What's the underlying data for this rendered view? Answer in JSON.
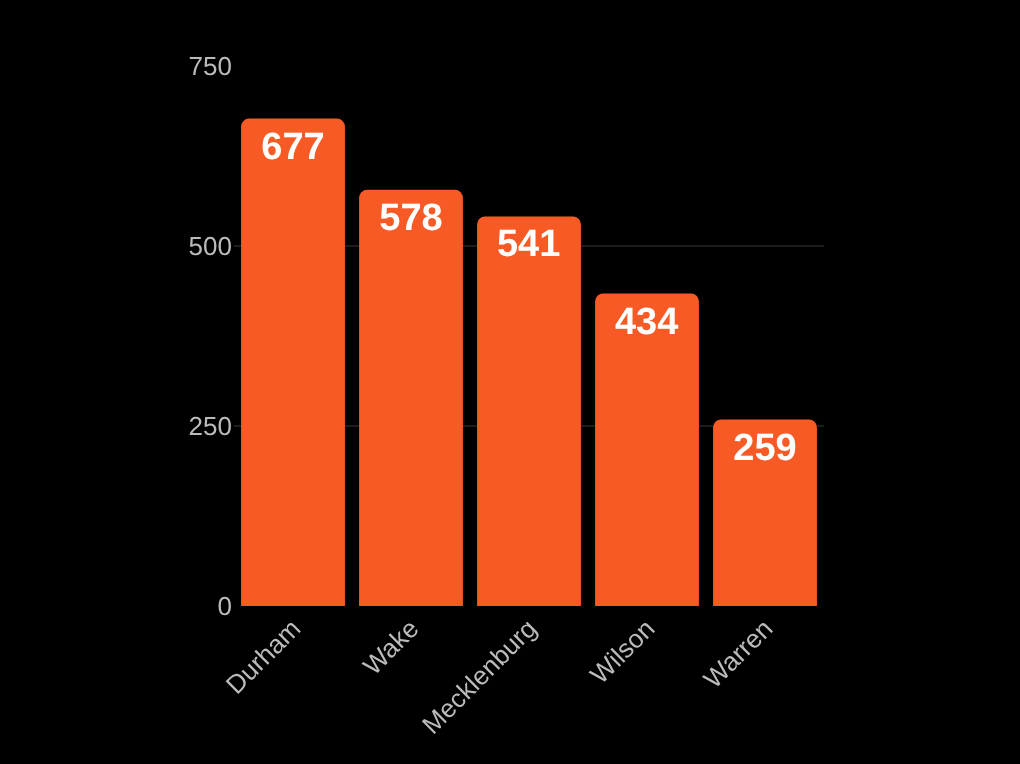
{
  "chart_data": {
    "type": "bar",
    "categories": [
      "Durham",
      "Wake",
      "Mecklenburg",
      "Wilson",
      "Warren"
    ],
    "values": [
      677,
      578,
      541,
      434,
      259
    ],
    "color": "#f75a25",
    "ylim": [
      0,
      750
    ],
    "yticks": [
      0,
      250,
      500,
      750
    ],
    "grid": "y",
    "data_labels": true
  }
}
